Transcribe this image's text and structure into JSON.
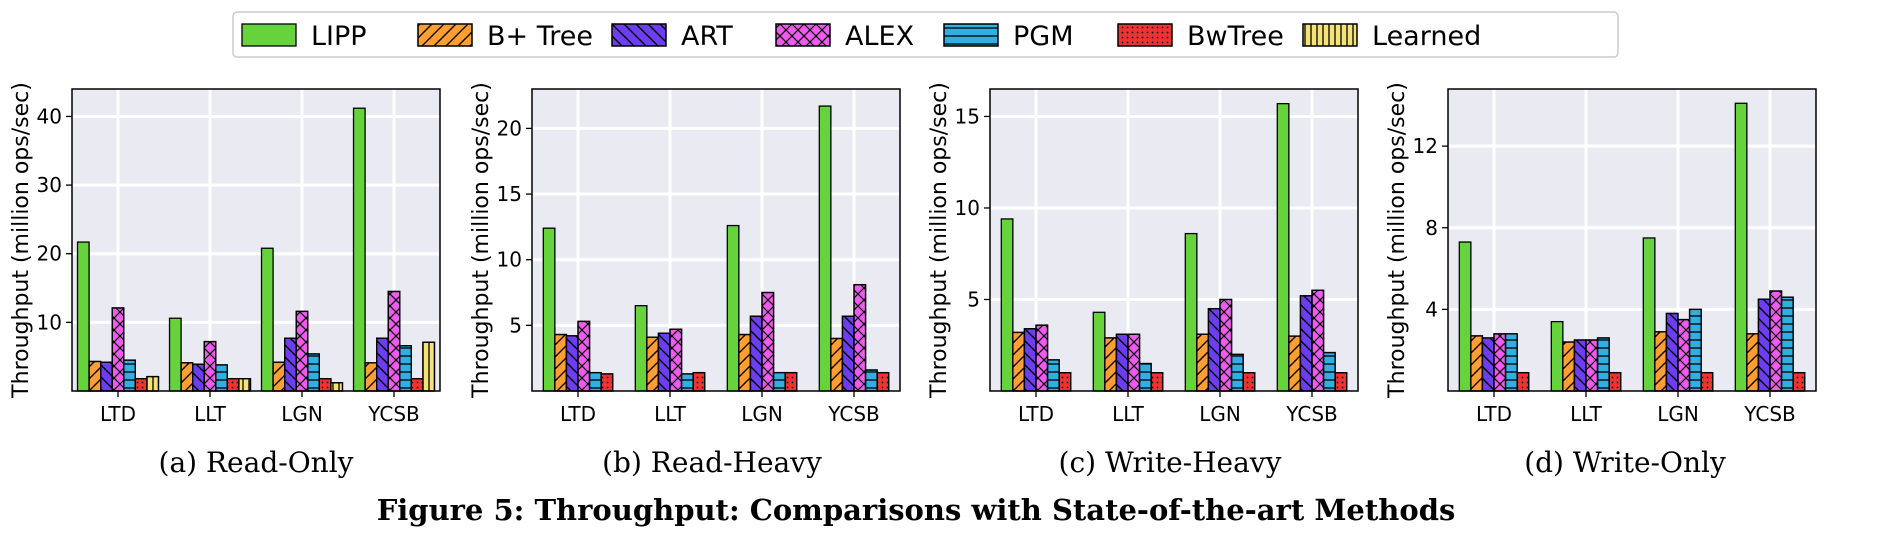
{
  "figure": {
    "caption": "Figure 5: Throughput: Comparisons with State-of-the-art Methods"
  },
  "legend": [
    {
      "name": "LIPP",
      "color": "#66d33c",
      "hatch": "none"
    },
    {
      "name": "B+ Tree",
      "color": "#ff9f33",
      "hatch": "diag"
    },
    {
      "name": "ART",
      "color": "#6d3df0",
      "hatch": "backdiag"
    },
    {
      "name": "ALEX",
      "color": "#f05af0",
      "hatch": "cross"
    },
    {
      "name": "PGM",
      "color": "#33aee0",
      "hatch": "horiz"
    },
    {
      "name": "BwTree",
      "color": "#ee3333",
      "hatch": "dots"
    },
    {
      "name": "Learned",
      "color": "#f3e37a",
      "hatch": "vert"
    }
  ],
  "chart_data": [
    {
      "type": "bar",
      "subcaption": "(a) Read-Only",
      "ylabel": "Throughput (million ops/sec)",
      "categories": [
        "LTD",
        "LLT",
        "LGN",
        "YCSB"
      ],
      "ylim": [
        0,
        44
      ],
      "yticks": [
        10,
        20,
        30,
        40
      ],
      "series": [
        {
          "name": "LIPP",
          "values": [
            21.7,
            10.6,
            20.8,
            41.2
          ]
        },
        {
          "name": "B+ Tree",
          "values": [
            4.3,
            4.1,
            4.2,
            4.1
          ]
        },
        {
          "name": "ART",
          "values": [
            4.2,
            3.9,
            7.7,
            7.7
          ]
        },
        {
          "name": "ALEX",
          "values": [
            12.1,
            7.2,
            11.6,
            14.5
          ]
        },
        {
          "name": "PGM",
          "values": [
            4.5,
            3.8,
            5.4,
            6.6
          ]
        },
        {
          "name": "BwTree",
          "values": [
            1.8,
            1.8,
            1.8,
            1.8
          ]
        },
        {
          "name": "Learned",
          "values": [
            2.1,
            1.8,
            1.2,
            7.1
          ]
        }
      ]
    },
    {
      "type": "bar",
      "subcaption": "(b) Read-Heavy",
      "ylabel": "Throughput (million ops/sec)",
      "categories": [
        "LTD",
        "LLT",
        "LGN",
        "YCSB"
      ],
      "ylim": [
        0,
        23
      ],
      "yticks": [
        5,
        10,
        15,
        20
      ],
      "series": [
        {
          "name": "LIPP",
          "values": [
            12.4,
            6.5,
            12.6,
            21.7
          ]
        },
        {
          "name": "B+ Tree",
          "values": [
            4.3,
            4.1,
            4.3,
            4.0
          ]
        },
        {
          "name": "ART",
          "values": [
            4.2,
            4.4,
            5.7,
            5.7
          ]
        },
        {
          "name": "ALEX",
          "values": [
            5.3,
            4.7,
            7.5,
            8.1
          ]
        },
        {
          "name": "PGM",
          "values": [
            1.4,
            1.3,
            1.4,
            1.6
          ]
        },
        {
          "name": "BwTree",
          "values": [
            1.3,
            1.4,
            1.4,
            1.4
          ]
        }
      ]
    },
    {
      "type": "bar",
      "subcaption": "(c) Write-Heavy",
      "ylabel": "Throughput (million ops/sec)",
      "categories": [
        "LTD",
        "LLT",
        "LGN",
        "YCSB"
      ],
      "ylim": [
        0,
        16.5
      ],
      "yticks": [
        5,
        10,
        15
      ],
      "series": [
        {
          "name": "LIPP",
          "values": [
            9.4,
            4.3,
            8.6,
            15.7
          ]
        },
        {
          "name": "B+ Tree",
          "values": [
            3.2,
            2.9,
            3.1,
            3.0
          ]
        },
        {
          "name": "ART",
          "values": [
            3.4,
            3.1,
            4.5,
            5.2
          ]
        },
        {
          "name": "ALEX",
          "values": [
            3.6,
            3.1,
            5.0,
            5.5
          ]
        },
        {
          "name": "PGM",
          "values": [
            1.7,
            1.5,
            2.0,
            2.1
          ]
        },
        {
          "name": "BwTree",
          "values": [
            1.0,
            1.0,
            1.0,
            1.0
          ]
        }
      ]
    },
    {
      "type": "bar",
      "subcaption": "(d) Write-Only",
      "ylabel": "Throughput (million ops/sec)",
      "categories": [
        "LTD",
        "LLT",
        "LGN",
        "YCSB"
      ],
      "ylim": [
        0,
        14.8
      ],
      "yticks": [
        4,
        8,
        12
      ],
      "series": [
        {
          "name": "LIPP",
          "values": [
            7.3,
            3.4,
            7.5,
            14.1
          ]
        },
        {
          "name": "B+ Tree",
          "values": [
            2.7,
            2.4,
            2.9,
            2.8
          ]
        },
        {
          "name": "ART",
          "values": [
            2.6,
            2.5,
            3.8,
            4.5
          ]
        },
        {
          "name": "ALEX",
          "values": [
            2.8,
            2.5,
            3.5,
            4.9
          ]
        },
        {
          "name": "PGM",
          "values": [
            2.8,
            2.6,
            4.0,
            4.6
          ]
        },
        {
          "name": "BwTree",
          "values": [
            0.9,
            0.9,
            0.9,
            0.9
          ]
        }
      ]
    }
  ]
}
